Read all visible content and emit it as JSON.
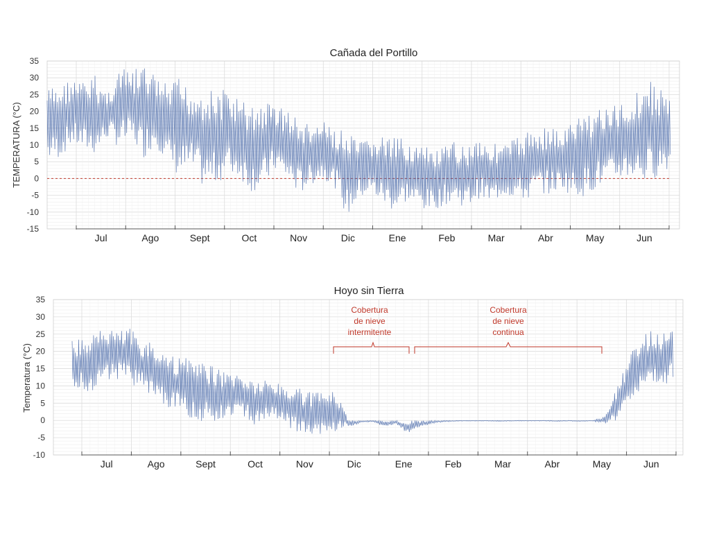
{
  "colors": {
    "series": "#3d5fa3",
    "zero_line_top": "#c0392b",
    "grid": "#dcdcdc",
    "axis": "#555555",
    "annotation": "#c0392b"
  },
  "chart_data": [
    {
      "type": "line",
      "title": "Cañada del Portillo",
      "xlabel": "",
      "ylabel": "TEMPERATURA (°C)",
      "ylim": [
        -15,
        35
      ],
      "yticks": [
        35,
        30,
        25,
        20,
        15,
        10,
        5,
        0,
        -5,
        -10,
        -15
      ],
      "months": [
        "Jul",
        "Ago",
        "Sept",
        "Oct",
        "Nov",
        "Dic",
        "Ene",
        "Feb",
        "Mar",
        "Abr",
        "May",
        "Jun"
      ],
      "grid": true,
      "zero_reference_line": true,
      "series": [
        {
          "daily_max": [
            27,
            28,
            30,
            29,
            31,
            26,
            33,
            32,
            34,
            31,
            28,
            30,
            27,
            28,
            26,
            27,
            24,
            22,
            23,
            23,
            21,
            18,
            16,
            17,
            15,
            14,
            11,
            12,
            13,
            12,
            12,
            10,
            9,
            9,
            11,
            10,
            13,
            11,
            10,
            12,
            14,
            15,
            16,
            14,
            18,
            20,
            22,
            21,
            23,
            25,
            30,
            28,
            25
          ],
          "daily_min": [
            5,
            6,
            10,
            8,
            7,
            12,
            9,
            11,
            6,
            10,
            4,
            0,
            2,
            -3,
            -2,
            1,
            0,
            -4,
            -3,
            2,
            -1,
            -5,
            -2,
            0,
            -3,
            -12,
            -6,
            -5,
            -8,
            -10,
            -7,
            -9,
            -10,
            -8,
            -7,
            -9,
            -6,
            -8,
            -5,
            -6,
            -7,
            -4,
            -5,
            -3,
            -6,
            -5,
            -3,
            -2,
            0,
            0,
            -2,
            1,
            3
          ]
        }
      ]
    },
    {
      "type": "line",
      "title": "Hoyo sin Tierra",
      "xlabel": "",
      "ylabel": "Temperatura (°C)",
      "ylim": [
        -10,
        35
      ],
      "yticks": [
        35,
        30,
        25,
        20,
        15,
        10,
        5,
        0,
        -5,
        -10
      ],
      "months": [
        "Jul",
        "Ago",
        "Sept",
        "Oct",
        "Nov",
        "Dic",
        "Ene",
        "Feb",
        "Mar",
        "Abr",
        "May",
        "Jun"
      ],
      "grid": true,
      "annotations": [
        {
          "text": [
            "Cobertura",
            "de nieve",
            "intermitente"
          ]
        },
        {
          "text": [
            "Cobertura",
            "de nieve",
            "continua"
          ]
        }
      ],
      "series": [
        {
          "daily_max": [
            23,
            24,
            25,
            28,
            26,
            27,
            24,
            22,
            21,
            19,
            18,
            17,
            16,
            15,
            14,
            13,
            12,
            12,
            11,
            10,
            9,
            8,
            9,
            8,
            0,
            0,
            0,
            0,
            0,
            0,
            0,
            0,
            0,
            0,
            0,
            0,
            0,
            0,
            0,
            0,
            0,
            0,
            0,
            0,
            0,
            0,
            1,
            8,
            16,
            24,
            26,
            27,
            26
          ],
          "daily_min": [
            10,
            8,
            9,
            11,
            12,
            10,
            9,
            6,
            4,
            2,
            1,
            0,
            -1,
            0,
            2,
            1,
            -2,
            0,
            -1,
            -3,
            -4,
            -5,
            -4,
            -3,
            -2,
            -0.5,
            -0.5,
            -2,
            -1,
            -4,
            -2,
            -1,
            -0.5,
            -0.3,
            -0.2,
            -0.2,
            -0.2,
            -0.3,
            -0.2,
            -0.2,
            -0.2,
            -0.2,
            -0.3,
            -0.2,
            -0.3,
            -0.2,
            -1,
            0,
            4,
            8,
            10,
            9,
            12
          ]
        }
      ]
    }
  ]
}
